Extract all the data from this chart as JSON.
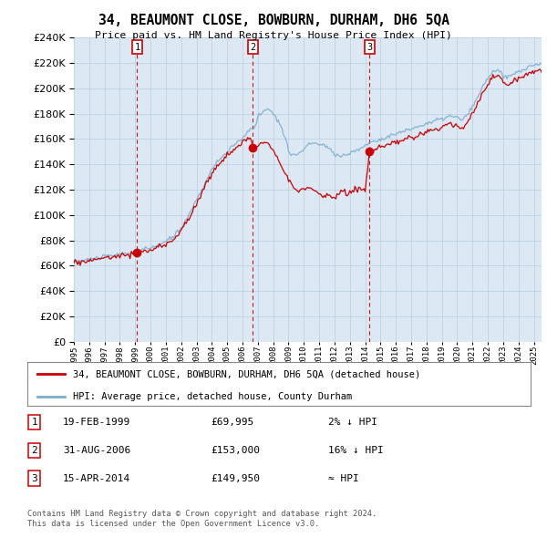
{
  "title": "34, BEAUMONT CLOSE, BOWBURN, DURHAM, DH6 5QA",
  "subtitle": "Price paid vs. HM Land Registry's House Price Index (HPI)",
  "legend_red": "34, BEAUMONT CLOSE, BOWBURN, DURHAM, DH6 5QA (detached house)",
  "legend_blue": "HPI: Average price, detached house, County Durham",
  "footer1": "Contains HM Land Registry data © Crown copyright and database right 2024.",
  "footer2": "This data is licensed under the Open Government Licence v3.0.",
  "transactions": [
    {
      "num": 1,
      "date": "19-FEB-1999",
      "price": "£69,995",
      "hpi": "2% ↓ HPI",
      "year": 1999.13
    },
    {
      "num": 2,
      "date": "31-AUG-2006",
      "price": "£153,000",
      "hpi": "16% ↓ HPI",
      "year": 2006.67
    },
    {
      "num": 3,
      "date": "15-APR-2014",
      "price": "£149,950",
      "hpi": "≈ HPI",
      "year": 2014.29
    }
  ],
  "sale_prices": [
    69995,
    153000,
    149950
  ],
  "sale_years": [
    1999.13,
    2006.67,
    2014.29
  ],
  "ylim": [
    0,
    240000
  ],
  "xlim_start": 1995.0,
  "xlim_end": 2025.5,
  "background_color": "#ffffff",
  "chart_bg": "#dce9f5",
  "grid_color": "#b8cfe0",
  "red_color": "#cc0000",
  "blue_color": "#7aadce"
}
